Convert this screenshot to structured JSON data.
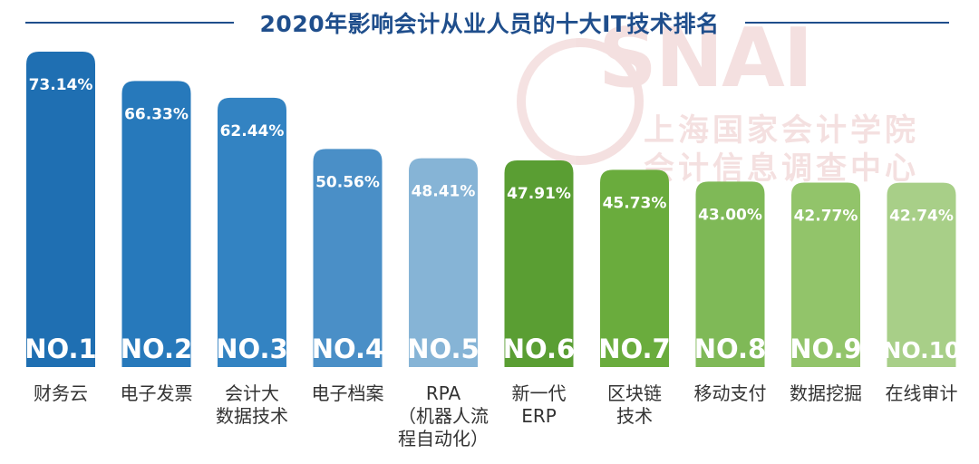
{
  "chart_data": {
    "type": "bar",
    "title": "2020年影响会计从业人员的十大IT技术排名",
    "categories": [
      [
        "财务云"
      ],
      [
        "电子发票"
      ],
      [
        "会计大",
        "数据技术"
      ],
      [
        "电子档案"
      ],
      [
        "RPA",
        "（机器人流",
        "程自动化）"
      ],
      [
        "新一代",
        "ERP"
      ],
      [
        "区块链",
        "技术"
      ],
      [
        "移动支付"
      ],
      [
        "数据挖掘"
      ],
      [
        "在线审计"
      ]
    ],
    "values": [
      73.14,
      66.33,
      62.44,
      50.56,
      48.41,
      47.91,
      45.73,
      43.0,
      42.77,
      42.74
    ],
    "value_labels": [
      "73.14%",
      "66.33%",
      "62.44%",
      "50.56%",
      "48.41%",
      "47.91%",
      "45.73%",
      "43.00%",
      "42.77%",
      "42.74%"
    ],
    "ranks": [
      "NO.1",
      "NO.2",
      "NO.3",
      "NO.4",
      "NO.5",
      "NO.6",
      "NO.7",
      "NO.8",
      "NO.9",
      "NO.10"
    ],
    "colors": [
      "#1f6fb2",
      "#2779bb",
      "#3383c2",
      "#4a8fc7",
      "#86b4d6",
      "#5a9e33",
      "#6aac3d",
      "#7fb957",
      "#92c46a",
      "#a8cf88"
    ],
    "ylim": [
      0,
      73.14
    ]
  },
  "watermark": {
    "logo": "SNAI",
    "line1": "上海国家会计学院",
    "line2": "会计信息调查中心"
  }
}
